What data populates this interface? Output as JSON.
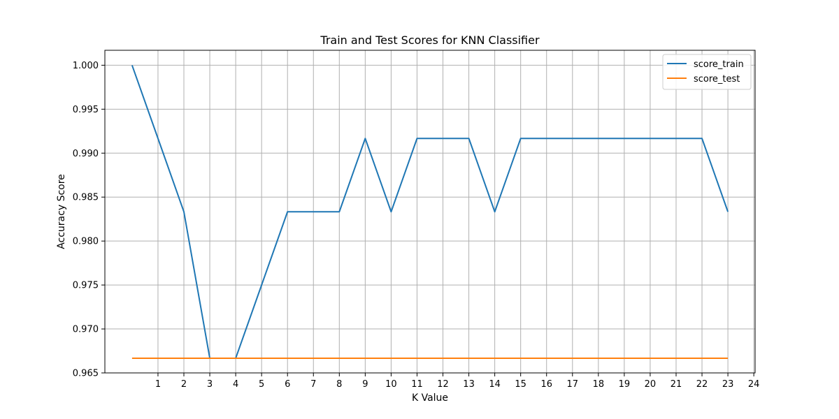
{
  "chart_data": {
    "type": "line",
    "title": "Train and Test Scores for KNN Classifier",
    "xlabel": "K Value",
    "ylabel": "Accuracy Score",
    "xlim": [
      -1.05,
      24.05
    ],
    "ylim": [
      0.965,
      1.0017
    ],
    "xticks": [
      1,
      2,
      3,
      4,
      5,
      6,
      7,
      8,
      9,
      10,
      11,
      12,
      13,
      14,
      15,
      16,
      17,
      18,
      19,
      20,
      21,
      22,
      23,
      24
    ],
    "xtick_labels": [
      "1",
      "2",
      "3",
      "4",
      "5",
      "6",
      "7",
      "8",
      "9",
      "10",
      "11",
      "12",
      "13",
      "14",
      "15",
      "16",
      "17",
      "18",
      "19",
      "20",
      "21",
      "22",
      "23",
      "24"
    ],
    "yticks": [
      0.965,
      0.97,
      0.975,
      0.98,
      0.985,
      0.99,
      0.995,
      1.0
    ],
    "ytick_labels": [
      "0.965",
      "0.970",
      "0.975",
      "0.980",
      "0.985",
      "0.990",
      "0.995",
      "1.000"
    ],
    "grid": true,
    "legend": "top-right",
    "x": [
      0,
      1,
      2,
      3,
      4,
      5,
      6,
      7,
      8,
      9,
      10,
      11,
      12,
      13,
      14,
      15,
      16,
      17,
      18,
      19,
      20,
      21,
      22,
      23
    ],
    "series": [
      {
        "name": "score_train",
        "color": "#1f77b4",
        "values": [
          1.0,
          0.99167,
          0.98333,
          0.96667,
          0.96667,
          0.975,
          0.98333,
          0.98333,
          0.98333,
          0.99167,
          0.98333,
          0.99167,
          0.99167,
          0.99167,
          0.98333,
          0.99167,
          0.99167,
          0.99167,
          0.99167,
          0.99167,
          0.99167,
          0.99167,
          0.99167,
          0.98333
        ]
      },
      {
        "name": "score_test",
        "color": "#ff7f0e",
        "values": [
          0.96667,
          0.96667,
          0.96667,
          0.96667,
          0.96667,
          0.96667,
          0.96667,
          0.96667,
          0.96667,
          0.96667,
          0.96667,
          0.96667,
          0.96667,
          0.96667,
          0.96667,
          0.96667,
          0.96667,
          0.96667,
          0.96667,
          0.96667,
          0.96667,
          0.96667,
          0.96667,
          0.96667
        ]
      }
    ]
  }
}
